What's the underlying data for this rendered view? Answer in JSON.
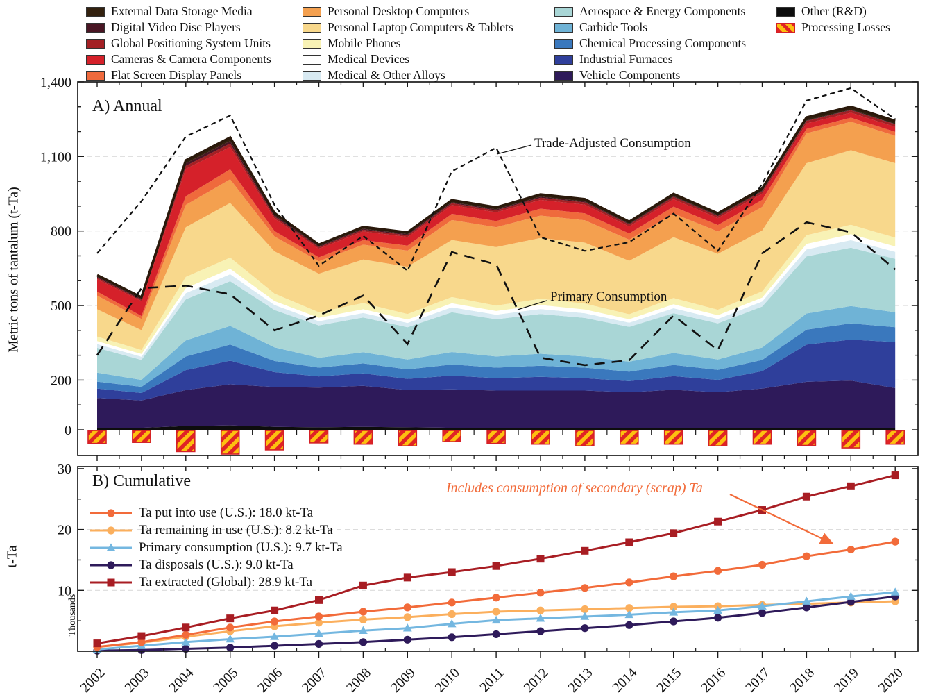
{
  "figure": {
    "title_a": "A) Annual",
    "title_b": "B) Cumulative",
    "ylabel_a": "Metric tons of tantalum (t-Ta)",
    "ylabel_b": "t-Ta",
    "ylabel_b_unit": "Thousands",
    "annotation_trade": "Trade-Adjusted Consumption",
    "annotation_primary": "Primary Consumption",
    "annotation_secondary": "Includes consumption of secondary (scrap) Ta",
    "accent_orange": "#f26b3a"
  },
  "legend": {
    "columns": [
      [
        {
          "label": "External Data Storage Media",
          "color": "#33210f"
        },
        {
          "label": "Digital Video Disc Players",
          "color": "#491624"
        },
        {
          "label": "Global Positioning System Units",
          "color": "#a32024"
        },
        {
          "label": "Cameras & Camera Components",
          "color": "#d5212a"
        },
        {
          "label": "Flat Screen Display Panels",
          "color": "#ef6a3c"
        }
      ],
      [
        {
          "label": "Personal Desktop Computers",
          "color": "#f4a04f"
        },
        {
          "label": "Personal Laptop Computers & Tablets",
          "color": "#f8d88c"
        },
        {
          "label": "Mobile Phones",
          "color": "#f8f2b5"
        },
        {
          "label": "Medical Devices",
          "color": "#ffffff"
        },
        {
          "label": "Medical & Other Alloys",
          "color": "#d8eaf2"
        }
      ],
      [
        {
          "label": "Aerospace & Energy Components",
          "color": "#a9d6d6"
        },
        {
          "label": "Carbide Tools",
          "color": "#6fb3d6"
        },
        {
          "label": "Chemical Processing Components",
          "color": "#3a78bd"
        },
        {
          "label": "Industrial Furnaces",
          "color": "#2f3f9b"
        },
        {
          "label": "Vehicle Components",
          "color": "#2e1a5a"
        }
      ],
      [
        {
          "label": "Other (R&D)",
          "color": "#0d0d0d"
        },
        {
          "label": "Processing Losses",
          "color": "hatched"
        }
      ]
    ]
  },
  "chart_data": [
    {
      "type": "area",
      "panel": "A",
      "title": "A) Annual",
      "ylabel": "Metric tons of tantalum (t-Ta)",
      "x": [
        2002,
        2003,
        2004,
        2005,
        2006,
        2007,
        2008,
        2009,
        2010,
        2011,
        2012,
        2013,
        2014,
        2015,
        2016,
        2017,
        2018,
        2019,
        2020
      ],
      "ylim": [
        -103,
        1400
      ],
      "yticks": [
        0,
        200,
        500,
        800,
        1100,
        1400
      ],
      "grid": [
        200,
        500,
        800,
        1100
      ],
      "legend_position": "above",
      "series": [
        {
          "name": "Other (R&D)",
          "color": "#0d0d0d",
          "values": [
            8,
            8,
            15,
            18,
            12,
            10,
            12,
            10,
            8,
            8,
            8,
            8,
            6,
            6,
            6,
            6,
            8,
            8,
            8
          ]
        },
        {
          "name": "Vehicle Components",
          "color": "#2e1a5a",
          "values": [
            120,
            110,
            145,
            165,
            160,
            160,
            165,
            150,
            155,
            150,
            150,
            150,
            145,
            155,
            145,
            160,
            185,
            190,
            160
          ]
        },
        {
          "name": "Industrial Furnaces",
          "color": "#2f3f9b",
          "values": [
            38,
            30,
            80,
            95,
            60,
            45,
            50,
            45,
            55,
            50,
            55,
            50,
            45,
            55,
            50,
            70,
            150,
            165,
            185
          ]
        },
        {
          "name": "Chemical Processing Components",
          "color": "#3a78bd",
          "values": [
            28,
            25,
            55,
            65,
            45,
            35,
            40,
            38,
            45,
            42,
            45,
            42,
            38,
            45,
            40,
            45,
            60,
            65,
            60
          ]
        },
        {
          "name": "Carbide Tools",
          "color": "#6fb3d6",
          "values": [
            36,
            28,
            65,
            75,
            55,
            40,
            45,
            40,
            50,
            45,
            48,
            45,
            40,
            48,
            42,
            50,
            65,
            70,
            60
          ]
        },
        {
          "name": "Aerospace & Energy Components",
          "color": "#a9d6d6",
          "values": [
            100,
            80,
            165,
            180,
            150,
            130,
            140,
            130,
            160,
            150,
            160,
            155,
            140,
            160,
            145,
            165,
            230,
            235,
            215
          ]
        },
        {
          "name": "Medical & Other Alloys",
          "color": "#d8eaf2",
          "values": [
            15,
            13,
            25,
            28,
            20,
            17,
            18,
            17,
            20,
            18,
            20,
            19,
            17,
            20,
            18,
            20,
            28,
            30,
            28
          ]
        },
        {
          "name": "Medical Devices",
          "color": "#ffffff",
          "values": [
            12,
            11,
            20,
            22,
            16,
            14,
            15,
            14,
            16,
            15,
            16,
            15,
            14,
            16,
            15,
            16,
            22,
            24,
            22
          ]
        },
        {
          "name": "Mobile Phones",
          "color": "#f8f2b5",
          "values": [
            18,
            16,
            45,
            45,
            30,
            22,
            25,
            22,
            25,
            22,
            25,
            24,
            20,
            25,
            22,
            25,
            35,
            38,
            35
          ]
        },
        {
          "name": "Personal Laptop Computers & Tablets",
          "color": "#f8d88c",
          "values": [
            110,
            80,
            200,
            220,
            170,
            155,
            175,
            190,
            230,
            235,
            245,
            245,
            215,
            245,
            225,
            245,
            290,
            300,
            300
          ]
        },
        {
          "name": "Personal Desktop Computers",
          "color": "#f4a04f",
          "values": [
            55,
            45,
            90,
            95,
            60,
            50,
            60,
            65,
            80,
            80,
            90,
            90,
            85,
            95,
            90,
            95,
            120,
            115,
            110
          ]
        },
        {
          "name": "Flat Screen Display Panels",
          "color": "#ef6a3c",
          "values": [
            16,
            12,
            35,
            40,
            22,
            16,
            18,
            20,
            25,
            25,
            28,
            28,
            25,
            28,
            26,
            28,
            18,
            16,
            16
          ]
        },
        {
          "name": "Cameras & Camera Components",
          "color": "#d5212a",
          "values": [
            50,
            60,
            110,
            90,
            50,
            35,
            35,
            35,
            35,
            35,
            35,
            35,
            28,
            30,
            28,
            25,
            22,
            20,
            20
          ]
        },
        {
          "name": "Global Positioning System Units",
          "color": "#a32024",
          "values": [
            6,
            5,
            12,
            14,
            8,
            6,
            7,
            7,
            8,
            8,
            9,
            9,
            8,
            9,
            8,
            9,
            10,
            10,
            10
          ]
        },
        {
          "name": "Digital Video Disc Players",
          "color": "#491624",
          "values": [
            4,
            4,
            10,
            10,
            6,
            4,
            4,
            4,
            4,
            4,
            4,
            4,
            3,
            3,
            3,
            3,
            2,
            2,
            2
          ]
        },
        {
          "name": "External Data Storage Media",
          "color": "#33210f",
          "values": [
            6,
            6,
            12,
            14,
            8,
            6,
            7,
            7,
            8,
            8,
            9,
            9,
            8,
            9,
            8,
            9,
            12,
            12,
            12
          ]
        }
      ],
      "losses": {
        "name": "Processing Losses",
        "stripe_colors": [
          "#fdc010",
          "#e02325"
        ],
        "values": [
          -52,
          -48,
          -85,
          -95,
          -78,
          -50,
          -55,
          -62,
          -45,
          -52,
          -55,
          -62,
          -55,
          -55,
          -62,
          -55,
          -60,
          -70,
          -55
        ]
      },
      "overlay_lines": [
        {
          "name": "Trade-Adjusted Consumption",
          "dash": "short",
          "color": "#111111",
          "values": [
            710,
            920,
            1180,
            1265,
            905,
            660,
            780,
            640,
            1040,
            1135,
            775,
            720,
            755,
            870,
            720,
            990,
            1325,
            1375,
            1250
          ]
        },
        {
          "name": "Primary Consumption",
          "dash": "long",
          "color": "#111111",
          "values": [
            300,
            570,
            580,
            545,
            400,
            460,
            540,
            345,
            715,
            665,
            290,
            260,
            280,
            460,
            320,
            710,
            835,
            795,
            645
          ]
        }
      ]
    },
    {
      "type": "line",
      "panel": "B",
      "title": "B) Cumulative",
      "ylabel": "t-Ta",
      "yunit": "Thousands",
      "x": [
        2002,
        2003,
        2004,
        2005,
        2006,
        2007,
        2008,
        2009,
        2010,
        2011,
        2012,
        2013,
        2014,
        2015,
        2016,
        2017,
        2018,
        2019,
        2020
      ],
      "ylim": [
        0,
        30.4
      ],
      "yticks": [
        10,
        20,
        30
      ],
      "grid": [
        10,
        20
      ],
      "series": [
        {
          "name": "Ta put into use (U.S.): 18.0 kt-Ta",
          "color": "#f26b3a",
          "marker": "circle",
          "values": [
            0.7,
            1.5,
            2.7,
            3.9,
            4.9,
            5.7,
            6.5,
            7.2,
            8.0,
            8.8,
            9.6,
            10.4,
            11.3,
            12.3,
            13.2,
            14.2,
            15.6,
            16.7,
            18.0
          ]
        },
        {
          "name": "Ta remaining in use (U.S.): 8.2 kt-Ta",
          "color": "#fbaf5d",
          "marker": "circle",
          "values": [
            0.7,
            1.4,
            2.4,
            3.3,
            4.1,
            4.7,
            5.2,
            5.6,
            6.1,
            6.5,
            6.7,
            6.9,
            7.1,
            7.3,
            7.4,
            7.6,
            7.8,
            8.0,
            8.2
          ]
        },
        {
          "name": "Primary consumption (U.S.): 9.7 kt-Ta",
          "color": "#74b7e0",
          "marker": "triangle",
          "values": [
            0.3,
            0.9,
            1.5,
            2.0,
            2.4,
            2.9,
            3.4,
            3.8,
            4.5,
            5.1,
            5.4,
            5.7,
            6.0,
            6.4,
            6.7,
            7.4,
            8.2,
            9.0,
            9.7
          ]
        },
        {
          "name": "Ta disposals (U.S.): 9.0 kt-Ta",
          "color": "#2e1a5a",
          "marker": "circle",
          "values": [
            0.1,
            0.2,
            0.4,
            0.6,
            0.9,
            1.2,
            1.5,
            1.9,
            2.3,
            2.8,
            3.3,
            3.8,
            4.3,
            4.9,
            5.5,
            6.3,
            7.2,
            8.1,
            9.0
          ]
        },
        {
          "name": "Ta extracted (Global): 28.9 kt-Ta",
          "color": "#a81d23",
          "marker": "square",
          "values": [
            1.3,
            2.5,
            3.9,
            5.4,
            6.7,
            8.4,
            10.8,
            12.1,
            13.0,
            14.0,
            15.2,
            16.5,
            17.9,
            19.4,
            21.3,
            23.2,
            25.4,
            27.1,
            28.9
          ]
        }
      ]
    }
  ]
}
